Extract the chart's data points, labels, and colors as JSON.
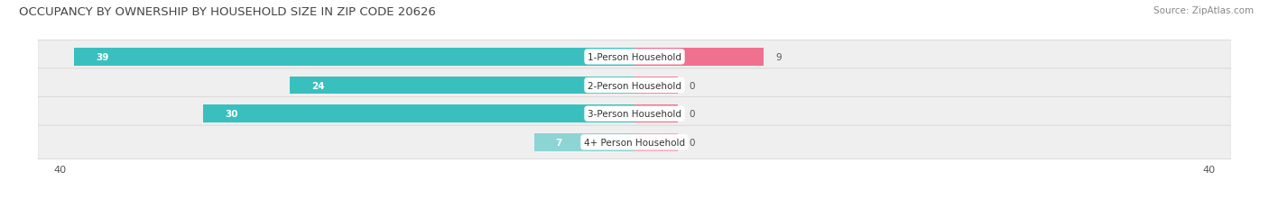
{
  "title": "OCCUPANCY BY OWNERSHIP BY HOUSEHOLD SIZE IN ZIP CODE 20626",
  "source": "Source: ZipAtlas.com",
  "categories": [
    "1-Person Household",
    "2-Person Household",
    "3-Person Household",
    "4+ Person Household"
  ],
  "owner_values": [
    39,
    24,
    30,
    7
  ],
  "renter_values": [
    9,
    0,
    0,
    0
  ],
  "renter_min_display": 3,
  "owner_color": "#3abfbf",
  "renter_color": "#f07090",
  "owner_color_light": "#8dd4d4",
  "renter_color_light": "#f4aabf",
  "row_bg_color": "#efefef",
  "row_bg_color2": "#e8e8e8",
  "axis_max": 40,
  "title_fontsize": 9.5,
  "source_fontsize": 7.5,
  "label_fontsize": 7.5,
  "tick_fontsize": 8,
  "legend_fontsize": 8,
  "bar_height": 0.62,
  "fig_width": 14.06,
  "fig_height": 2.32
}
